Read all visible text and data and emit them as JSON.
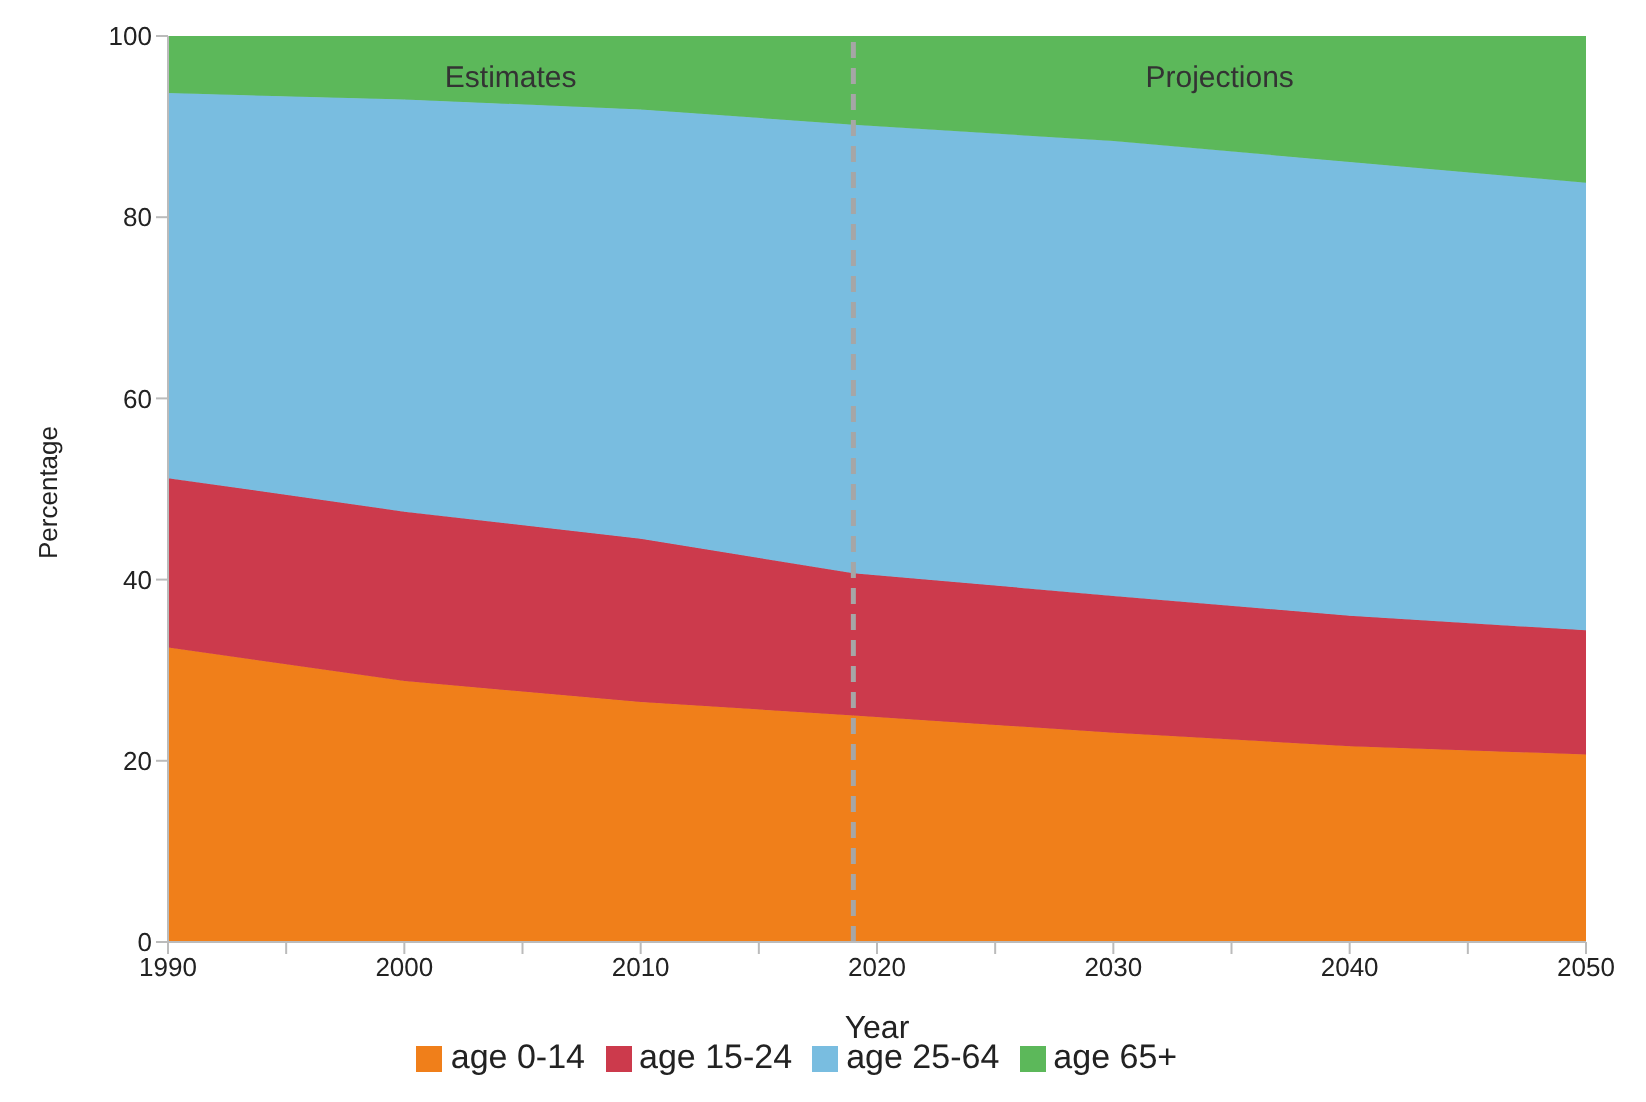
{
  "chart_data": {
    "type": "area",
    "stacked": true,
    "xlabel": "Year",
    "ylabel": "Percentage",
    "x": [
      1990,
      2000,
      2010,
      2019,
      2030,
      2040,
      2050
    ],
    "series": [
      {
        "name": "age 0-14",
        "color": "#f07f1a",
        "values": [
          32.5,
          28.8,
          26.5,
          25.0,
          23.1,
          21.6,
          20.7
        ]
      },
      {
        "name": "age 15-24",
        "color": "#cc3a4c",
        "values": [
          18.7,
          18.7,
          18.0,
          15.7,
          15.1,
          14.4,
          13.7
        ]
      },
      {
        "name": "age 25-64",
        "color": "#79bde0",
        "values": [
          42.5,
          45.5,
          47.4,
          49.5,
          50.2,
          50.1,
          49.4
        ]
      },
      {
        "name": "age 65+",
        "color": "#5cb85a",
        "values": [
          6.3,
          7.0,
          8.1,
          9.8,
          11.6,
          13.9,
          16.2
        ]
      }
    ],
    "xlim": [
      1990,
      2050
    ],
    "xticks": [
      1990,
      {
        "value": 1995,
        "label": null
      },
      2000,
      {
        "value": 2005,
        "label": null
      },
      2010,
      {
        "value": 2015,
        "label": null
      },
      2020,
      {
        "value": 2025,
        "label": null
      },
      2030,
      {
        "value": 2035,
        "label": null
      },
      2040,
      {
        "value": 2045,
        "label": null
      },
      2050
    ],
    "ylim": [
      0,
      100
    ],
    "yticks": [
      0,
      20,
      40,
      60,
      80,
      100
    ],
    "ref_lines": [
      {
        "axis": "x",
        "value": 2019,
        "color": "#a6a6a6",
        "line_style": "dashed"
      }
    ],
    "annotations": [
      "Estimates",
      "Projections"
    ],
    "grid": false,
    "legend": "bottom"
  }
}
